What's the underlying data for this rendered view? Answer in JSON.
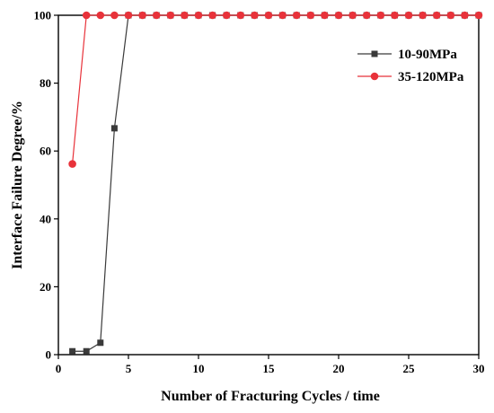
{
  "chart_data": {
    "type": "line",
    "xlabel": "Number of Fracturing Cycles / time",
    "ylabel": "Interface Failure Degree/%",
    "xlim": [
      0,
      30
    ],
    "ylim": [
      0,
      100
    ],
    "xticks": [
      0,
      5,
      10,
      15,
      20,
      25,
      30
    ],
    "yticks": [
      0,
      20,
      40,
      60,
      80,
      100
    ],
    "grid": false,
    "legend_position": "top-right",
    "series": [
      {
        "name": "10-90MPa",
        "color": "#3a3a3a",
        "marker": "square",
        "x": [
          1,
          2,
          3,
          4,
          5,
          6,
          7,
          8,
          9,
          10,
          11,
          12,
          13,
          14,
          15,
          16,
          17,
          18,
          19,
          20,
          21,
          22,
          23,
          24,
          25,
          26,
          27,
          28,
          29,
          30
        ],
        "y": [
          1,
          1,
          3.5,
          66.7,
          100,
          100,
          100,
          100,
          100,
          100,
          100,
          100,
          100,
          100,
          100,
          100,
          100,
          100,
          100,
          100,
          100,
          100,
          100,
          100,
          100,
          100,
          100,
          100,
          100,
          100
        ]
      },
      {
        "name": "35-120MPa",
        "color": "#e8323a",
        "marker": "circle",
        "x": [
          1,
          2,
          3,
          4,
          5,
          6,
          7,
          8,
          9,
          10,
          11,
          12,
          13,
          14,
          15,
          16,
          17,
          18,
          19,
          20,
          21,
          22,
          23,
          24,
          25,
          26,
          27,
          28,
          29,
          30
        ],
        "y": [
          56.2,
          100,
          100,
          100,
          100,
          100,
          100,
          100,
          100,
          100,
          100,
          100,
          100,
          100,
          100,
          100,
          100,
          100,
          100,
          100,
          100,
          100,
          100,
          100,
          100,
          100,
          100,
          100,
          100,
          100
        ]
      }
    ]
  }
}
